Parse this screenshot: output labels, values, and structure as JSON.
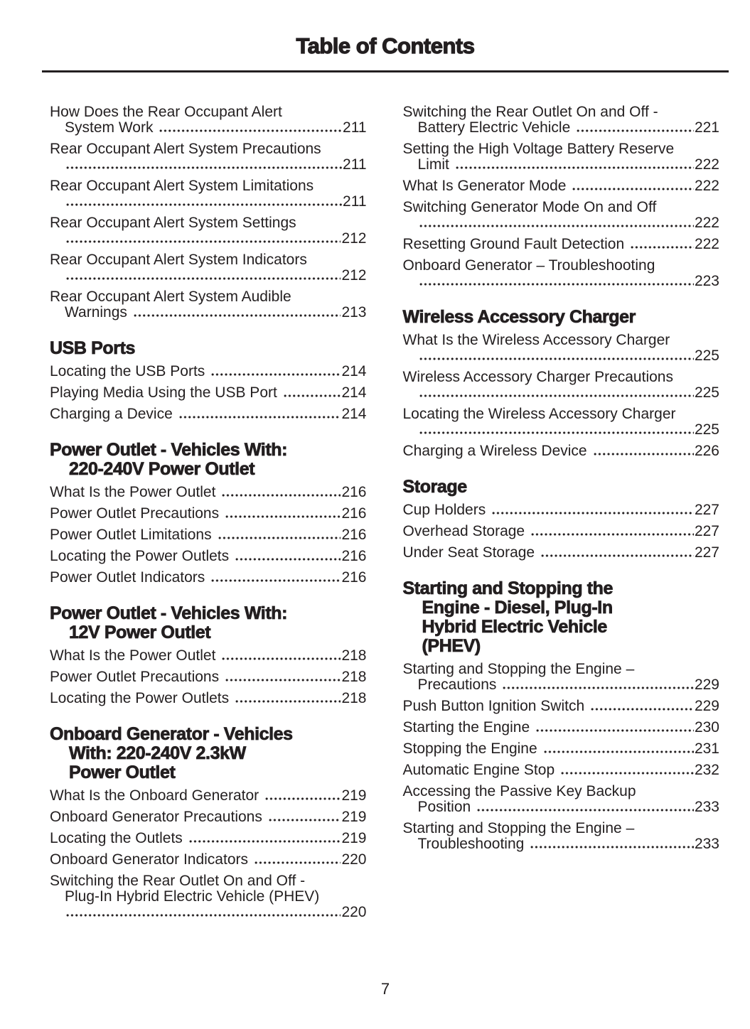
{
  "page": {
    "title": "Table of Contents",
    "page_number": "7",
    "colors": {
      "text": "#231f20",
      "background": "#ffffff"
    }
  },
  "toc": {
    "columns": [
      {
        "blocks": [
          {
            "type": "entries",
            "items": [
              {
                "lines": [
                  "How Does the Rear Occupant Alert",
                  "System Work"
                ],
                "page": "211"
              },
              {
                "lines": [
                  "Rear Occupant Alert System Precautions",
                  ""
                ],
                "page": "211"
              },
              {
                "lines": [
                  "Rear Occupant Alert System Limitations",
                  ""
                ],
                "page": "211"
              },
              {
                "lines": [
                  "Rear Occupant Alert System Settings",
                  ""
                ],
                "page": "212"
              },
              {
                "lines": [
                  "Rear Occupant Alert System Indicators",
                  ""
                ],
                "page": "212"
              },
              {
                "lines": [
                  "Rear Occupant Alert System Audible",
                  "Warnings"
                ],
                "page": "213"
              }
            ]
          },
          {
            "type": "heading",
            "lines": [
              "USB Ports"
            ]
          },
          {
            "type": "entries",
            "items": [
              {
                "lines": [
                  "Locating the USB Ports"
                ],
                "page": "214"
              },
              {
                "lines": [
                  "Playing Media Using the USB Port"
                ],
                "page": "214"
              },
              {
                "lines": [
                  "Charging a Device"
                ],
                "page": "214"
              }
            ]
          },
          {
            "type": "heading",
            "lines": [
              "Power Outlet - Vehicles With:",
              "220-240V Power Outlet"
            ]
          },
          {
            "type": "entries",
            "items": [
              {
                "lines": [
                  "What Is the Power Outlet"
                ],
                "page": "216"
              },
              {
                "lines": [
                  "Power Outlet Precautions"
                ],
                "page": "216"
              },
              {
                "lines": [
                  "Power Outlet Limitations"
                ],
                "page": "216"
              },
              {
                "lines": [
                  "Locating the Power Outlets"
                ],
                "page": "216"
              },
              {
                "lines": [
                  "Power Outlet Indicators"
                ],
                "page": "216"
              }
            ]
          },
          {
            "type": "heading",
            "lines": [
              "Power Outlet - Vehicles With:",
              "12V Power Outlet"
            ]
          },
          {
            "type": "entries",
            "items": [
              {
                "lines": [
                  "What Is the Power Outlet"
                ],
                "page": "218"
              },
              {
                "lines": [
                  "Power Outlet Precautions"
                ],
                "page": "218"
              },
              {
                "lines": [
                  "Locating the Power Outlets"
                ],
                "page": "218"
              }
            ]
          },
          {
            "type": "heading",
            "lines": [
              "Onboard Generator - Vehicles",
              "With: 220-240V 2.3kW",
              "Power Outlet"
            ]
          },
          {
            "type": "entries",
            "items": [
              {
                "lines": [
                  "What Is the Onboard Generator"
                ],
                "page": "219"
              },
              {
                "lines": [
                  "Onboard Generator Precautions"
                ],
                "page": "219"
              },
              {
                "lines": [
                  "Locating the Outlets"
                ],
                "page": "219"
              },
              {
                "lines": [
                  "Onboard Generator Indicators"
                ],
                "page": "220"
              },
              {
                "lines": [
                  "Switching the Rear Outlet On and Off -",
                  "Plug-In Hybrid Electric Vehicle (PHEV)",
                  ""
                ],
                "page": "220"
              }
            ]
          }
        ]
      },
      {
        "blocks": [
          {
            "type": "entries",
            "items": [
              {
                "lines": [
                  "Switching the Rear Outlet On and Off -",
                  "Battery Electric Vehicle"
                ],
                "page": "221"
              },
              {
                "lines": [
                  "Setting the High Voltage Battery Reserve",
                  "Limit"
                ],
                "page": "222"
              },
              {
                "lines": [
                  "What Is Generator Mode"
                ],
                "page": "222"
              },
              {
                "lines": [
                  "Switching Generator Mode On and Off",
                  ""
                ],
                "page": "222"
              },
              {
                "lines": [
                  "Resetting Ground Fault Detection"
                ],
                "page": "222"
              },
              {
                "lines": [
                  "Onboard Generator – Troubleshooting",
                  ""
                ],
                "page": "223"
              }
            ]
          },
          {
            "type": "heading",
            "lines": [
              "Wireless Accessory Charger"
            ]
          },
          {
            "type": "entries",
            "items": [
              {
                "lines": [
                  "What Is the Wireless Accessory Charger",
                  ""
                ],
                "page": "225"
              },
              {
                "lines": [
                  "Wireless Accessory Charger Precautions",
                  ""
                ],
                "page": "225"
              },
              {
                "lines": [
                  "Locating the Wireless Accessory Charger",
                  ""
                ],
                "page": "225"
              },
              {
                "lines": [
                  "Charging a Wireless Device"
                ],
                "page": "226"
              }
            ]
          },
          {
            "type": "heading",
            "lines": [
              "Storage"
            ]
          },
          {
            "type": "entries",
            "items": [
              {
                "lines": [
                  "Cup Holders"
                ],
                "page": "227"
              },
              {
                "lines": [
                  "Overhead Storage"
                ],
                "page": "227"
              },
              {
                "lines": [
                  "Under Seat Storage"
                ],
                "page": "227"
              }
            ]
          },
          {
            "type": "heading",
            "lines": [
              "Starting and Stopping the",
              "Engine - Diesel, Plug-In",
              "Hybrid Electric Vehicle",
              "(PHEV)"
            ]
          },
          {
            "type": "entries",
            "items": [
              {
                "lines": [
                  "Starting and Stopping the Engine –",
                  "Precautions"
                ],
                "page": "229"
              },
              {
                "lines": [
                  "Push Button Ignition Switch"
                ],
                "page": "229"
              },
              {
                "lines": [
                  "Starting the Engine"
                ],
                "page": "230"
              },
              {
                "lines": [
                  "Stopping the Engine"
                ],
                "page": "231"
              },
              {
                "lines": [
                  "Automatic Engine Stop"
                ],
                "page": "232"
              },
              {
                "lines": [
                  "Accessing the Passive Key Backup",
                  "Position"
                ],
                "page": "233"
              },
              {
                "lines": [
                  "Starting and Stopping the Engine –",
                  "Troubleshooting"
                ],
                "page": "233"
              }
            ]
          }
        ]
      }
    ]
  }
}
